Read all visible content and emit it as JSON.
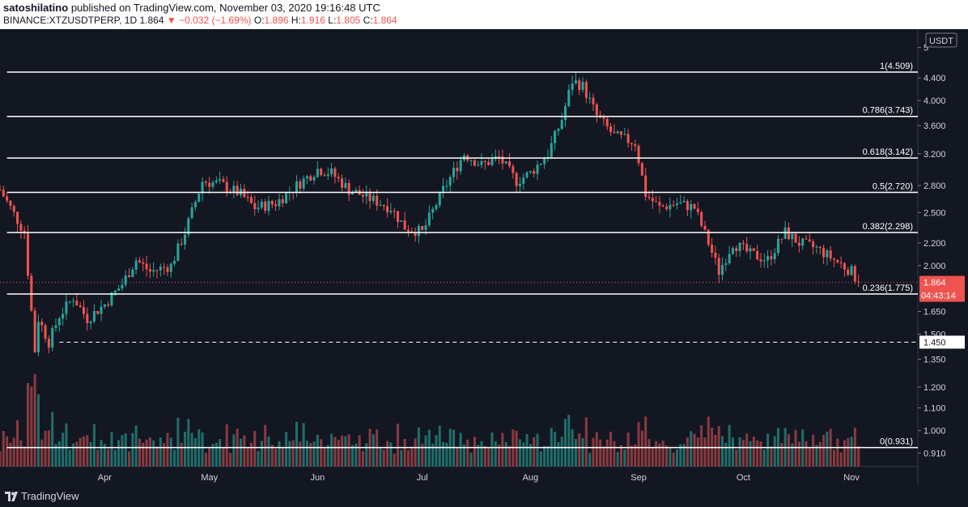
{
  "header": {
    "author": "satoshilatino",
    "published_text": "published on TradingView.com, November 03, 2020 19:16:48 UTC",
    "symbol": "BINANCE:XTZUSDTPERP, 1D",
    "last": "1.864",
    "change_arrow": "▼",
    "change": "−0.032 (−1.69%)",
    "o_label": "O:",
    "o_value": "1.896",
    "h_label": "H:",
    "h_value": "1.916",
    "l_label": "L:",
    "l_value": "1.805",
    "c_label": "C:",
    "c_value": "1.864"
  },
  "footer": {
    "brand": "TradingView",
    "logo_icon": "tradingview-logo-icon"
  },
  "colors": {
    "background": "#131722",
    "up": "#26a69a",
    "down": "#ef5350",
    "up_volume": "#1f6e6a",
    "down_volume": "#8a3a3f",
    "level_line": "#ffffff",
    "axis_text": "#d1d4dc"
  },
  "chart_data": {
    "type": "candlestick",
    "symbol": "BINANCE:XTZUSDTPERP",
    "interval": "1D",
    "currency_label": "USDT",
    "y_scale": "log",
    "ylim": [
      0.86,
      5.4
    ],
    "x_range": [
      "2020-03-02",
      "2020-11-20"
    ],
    "grid": false,
    "x_tick_labels": [
      {
        "label": "Apr",
        "date": "2020-04-01"
      },
      {
        "label": "May",
        "date": "2020-05-01"
      },
      {
        "label": "Jun",
        "date": "2020-06-01"
      },
      {
        "label": "Jul",
        "date": "2020-07-01"
      },
      {
        "label": "Aug",
        "date": "2020-08-01"
      },
      {
        "label": "Sep",
        "date": "2020-09-01"
      },
      {
        "label": "Oct",
        "date": "2020-10-01"
      },
      {
        "label": "Nov",
        "date": "2020-11-01"
      }
    ],
    "y_tick_labels": [
      "5",
      "4.400",
      "4.000",
      "3.600",
      "3.200",
      "2.800",
      "2.500",
      "2.200",
      "2.000",
      "1.650",
      "1.500",
      "1.350",
      "1.200",
      "1.100",
      "1.000",
      "0.910"
    ],
    "fib_levels": [
      {
        "label": "1(4.509)",
        "value": 4.509
      },
      {
        "label": "0.786(3.743)",
        "value": 3.743
      },
      {
        "label": "0.618(3.142)",
        "value": 3.142
      },
      {
        "label": "0.5(2.720)",
        "value": 2.72
      },
      {
        "label": "0.382(2.298)",
        "value": 2.298
      },
      {
        "label": "0.236(1.775)",
        "value": 1.775
      },
      {
        "label": "0(0.931)",
        "value": 0.931
      }
    ],
    "horizontal_line": {
      "label": "1.450",
      "value": 1.45,
      "style": "dashed"
    },
    "last_price": {
      "value": 1.864,
      "label": "1.864",
      "countdown": "04:43:14"
    },
    "volume_bars": "shown",
    "series": [
      {
        "name": "price",
        "points": [
          [
            "2020-03-02",
            2.75
          ],
          [
            "2020-03-05",
            2.55
          ],
          [
            "2020-03-09",
            2.3
          ],
          [
            "2020-03-12",
            1.4
          ],
          [
            "2020-03-13",
            1.6
          ],
          [
            "2020-03-16",
            1.45
          ],
          [
            "2020-03-19",
            1.62
          ],
          [
            "2020-03-23",
            1.75
          ],
          [
            "2020-03-27",
            1.6
          ],
          [
            "2020-04-01",
            1.7
          ],
          [
            "2020-04-06",
            1.85
          ],
          [
            "2020-04-10",
            2.05
          ],
          [
            "2020-04-14",
            1.95
          ],
          [
            "2020-04-20",
            2.0
          ],
          [
            "2020-04-24",
            2.3
          ],
          [
            "2020-04-29",
            2.85
          ],
          [
            "2020-05-04",
            2.82
          ],
          [
            "2020-05-10",
            2.7
          ],
          [
            "2020-05-14",
            2.55
          ],
          [
            "2020-05-20",
            2.6
          ],
          [
            "2020-05-26",
            2.8
          ],
          [
            "2020-06-01",
            3.0
          ],
          [
            "2020-06-05",
            2.95
          ],
          [
            "2020-06-10",
            2.75
          ],
          [
            "2020-06-16",
            2.65
          ],
          [
            "2020-06-22",
            2.55
          ],
          [
            "2020-06-26",
            2.35
          ],
          [
            "2020-07-01",
            2.3
          ],
          [
            "2020-07-07",
            2.75
          ],
          [
            "2020-07-13",
            3.2
          ],
          [
            "2020-07-18",
            3.05
          ],
          [
            "2020-07-23",
            3.15
          ],
          [
            "2020-07-28",
            2.85
          ],
          [
            "2020-08-01",
            2.95
          ],
          [
            "2020-08-06",
            3.2
          ],
          [
            "2020-08-10",
            3.7
          ],
          [
            "2020-08-13",
            4.35
          ],
          [
            "2020-08-16",
            4.25
          ],
          [
            "2020-08-20",
            3.75
          ],
          [
            "2020-08-25",
            3.45
          ],
          [
            "2020-08-31",
            3.35
          ],
          [
            "2020-09-03",
            2.7
          ],
          [
            "2020-09-07",
            2.55
          ],
          [
            "2020-09-12",
            2.6
          ],
          [
            "2020-09-17",
            2.55
          ],
          [
            "2020-09-21",
            2.2
          ],
          [
            "2020-09-24",
            1.95
          ],
          [
            "2020-09-28",
            2.2
          ],
          [
            "2020-10-03",
            2.1
          ],
          [
            "2020-10-08",
            2.05
          ],
          [
            "2020-10-13",
            2.3
          ],
          [
            "2020-10-17",
            2.2
          ],
          [
            "2020-10-22",
            2.15
          ],
          [
            "2020-10-27",
            2.05
          ],
          [
            "2020-11-01",
            1.95
          ],
          [
            "2020-11-03",
            1.864
          ]
        ]
      }
    ]
  }
}
